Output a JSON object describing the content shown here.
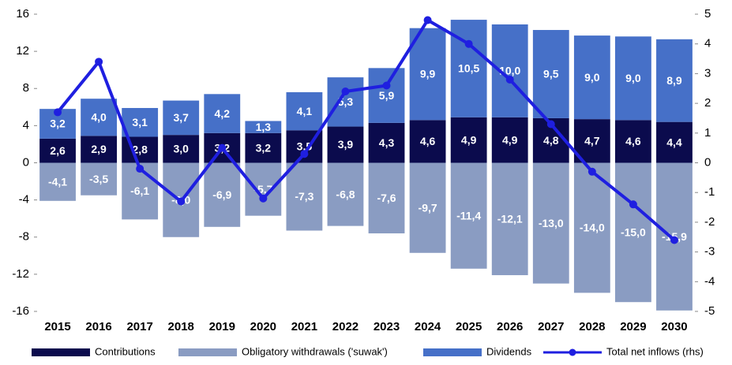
{
  "chart_data": {
    "type": "bar",
    "stacked": true,
    "categories": [
      "2015",
      "2016",
      "2017",
      "2018",
      "2019",
      "2020",
      "2021",
      "2022",
      "2023",
      "2024",
      "2025",
      "2026",
      "2027",
      "2028",
      "2029",
      "2030"
    ],
    "ylim": [
      -16,
      16
    ],
    "yticks": [
      -16,
      -12,
      -8,
      -4,
      0,
      4,
      8,
      12,
      16
    ],
    "y2lim": [
      -5,
      5
    ],
    "y2ticks": [
      -5,
      -4,
      -3,
      -2,
      -1,
      0,
      1,
      2,
      3,
      4,
      5
    ],
    "legend": "bottom",
    "series": [
      {
        "name": "Contributions",
        "color": "#0b0b4d",
        "values": [
          2.6,
          2.9,
          2.8,
          3.0,
          3.2,
          3.2,
          3.5,
          3.9,
          4.3,
          4.6,
          4.9,
          4.9,
          4.8,
          4.7,
          4.6,
          4.4
        ],
        "value_labels": [
          "2,6",
          "2,9",
          "2,8",
          "3,0",
          "3,2",
          "3,2",
          "3,5",
          "3,9",
          "4,3",
          "4,6",
          "4,9",
          "4,9",
          "4,8",
          "4,7",
          "4,6",
          "4,4"
        ]
      },
      {
        "name": "Obligatory withdrawals ('suwak')",
        "color": "#8a9cc2",
        "values": [
          -4.1,
          -3.5,
          -6.1,
          -8.0,
          -6.9,
          -5.7,
          -7.3,
          -6.8,
          -7.6,
          -9.7,
          -11.4,
          -12.1,
          -13.0,
          -14.0,
          -15.0,
          -15.9
        ],
        "value_labels": [
          "-4,1",
          "-3,5",
          "-6,1",
          "-8,0",
          "-6,9",
          "-5,7",
          "-7,3",
          "-6,8",
          "-7,6",
          "-9,7",
          "-11,4",
          "-12,1",
          "-13,0",
          "-14,0",
          "-15,0",
          "-15,9"
        ]
      },
      {
        "name": "Dividends",
        "color": "#4670c8",
        "values": [
          3.2,
          4.0,
          3.1,
          3.7,
          4.2,
          1.3,
          4.1,
          5.3,
          5.9,
          9.9,
          10.5,
          10.0,
          9.5,
          9.0,
          9.0,
          8.9
        ],
        "value_labels": [
          "3,2",
          "4,0",
          "3,1",
          "3,7",
          "4,2",
          "1,3",
          "4,1",
          "5,3",
          "5,9",
          "9,9",
          "10,5",
          "10,0",
          "9,5",
          "9,0",
          "9,0",
          "8,9"
        ]
      },
      {
        "name": "Total net inflows (rhs)",
        "color": "#1f1fe0",
        "type": "line",
        "axis": "y2",
        "values": [
          1.7,
          3.4,
          -0.2,
          -1.3,
          0.5,
          -1.2,
          0.3,
          2.4,
          2.6,
          4.8,
          4.0,
          2.8,
          1.3,
          -0.3,
          -1.4,
          -2.6
        ]
      }
    ]
  }
}
